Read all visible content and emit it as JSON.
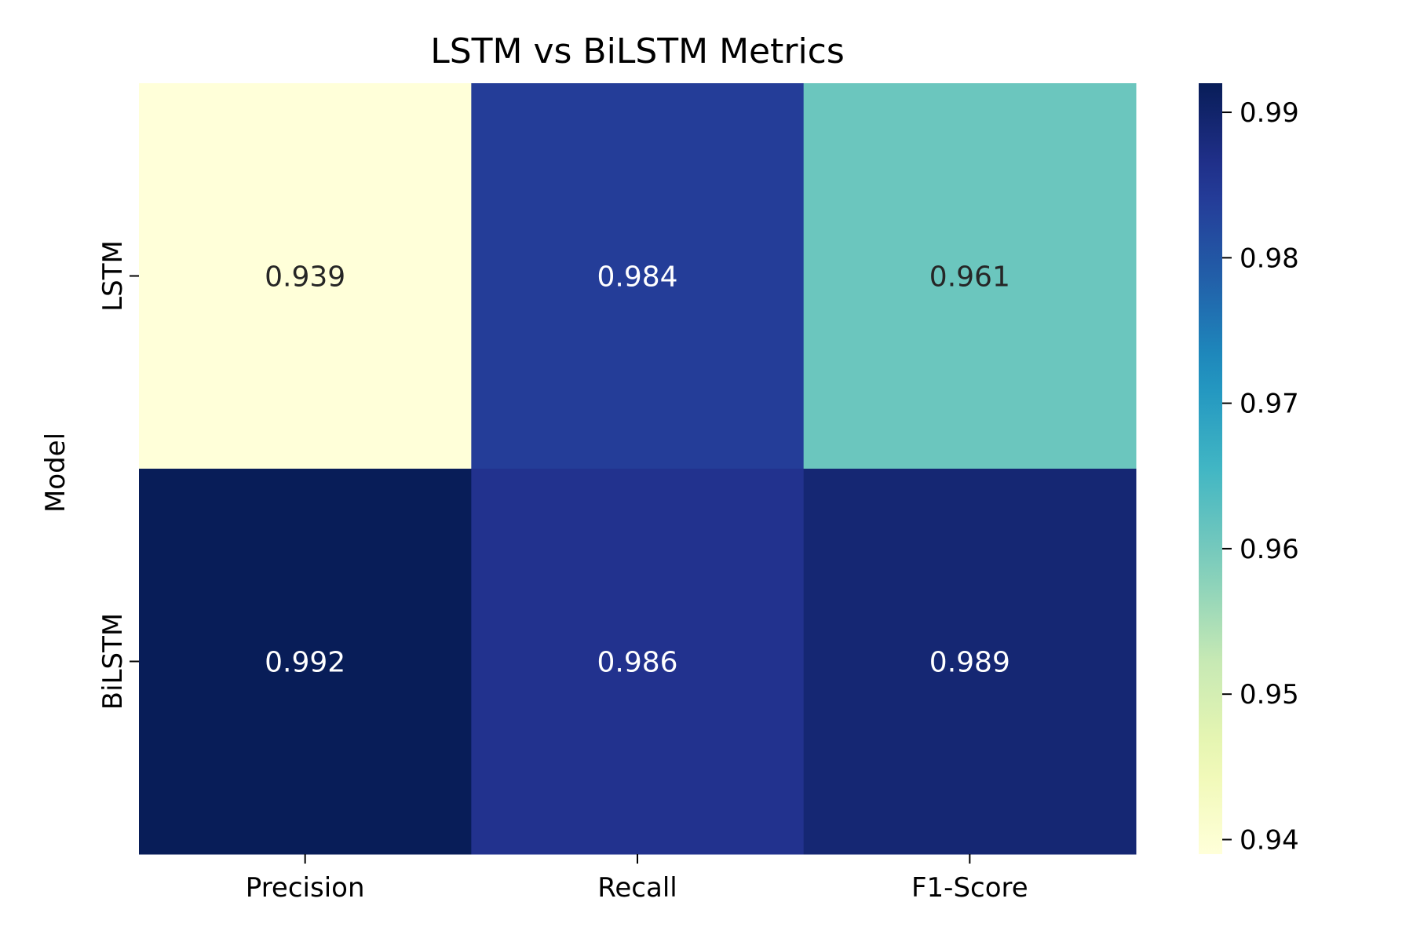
{
  "chart_data": {
    "type": "heatmap",
    "title": "LSTM vs BiLSTM Metrics",
    "ylabel": "Model",
    "xlabel": "",
    "columns": [
      "Precision",
      "Recall",
      "F1-Score"
    ],
    "rows": [
      "LSTM",
      "BiLSTM"
    ],
    "values": [
      [
        0.939,
        0.984,
        0.961
      ],
      [
        0.992,
        0.986,
        0.989
      ]
    ],
    "value_labels": [
      [
        "0.939",
        "0.984",
        "0.961"
      ],
      [
        "0.992",
        "0.986",
        "0.989"
      ]
    ],
    "colormap": "YlGnBu",
    "colorbar": {
      "vmin": 0.939,
      "vmax": 0.992,
      "ticks": [
        0.94,
        0.95,
        0.96,
        0.97,
        0.98,
        0.99
      ],
      "tick_labels": [
        "0.94",
        "0.95",
        "0.96",
        "0.97",
        "0.98",
        "0.99"
      ]
    },
    "grid": false,
    "legend": "colorbar-right"
  }
}
